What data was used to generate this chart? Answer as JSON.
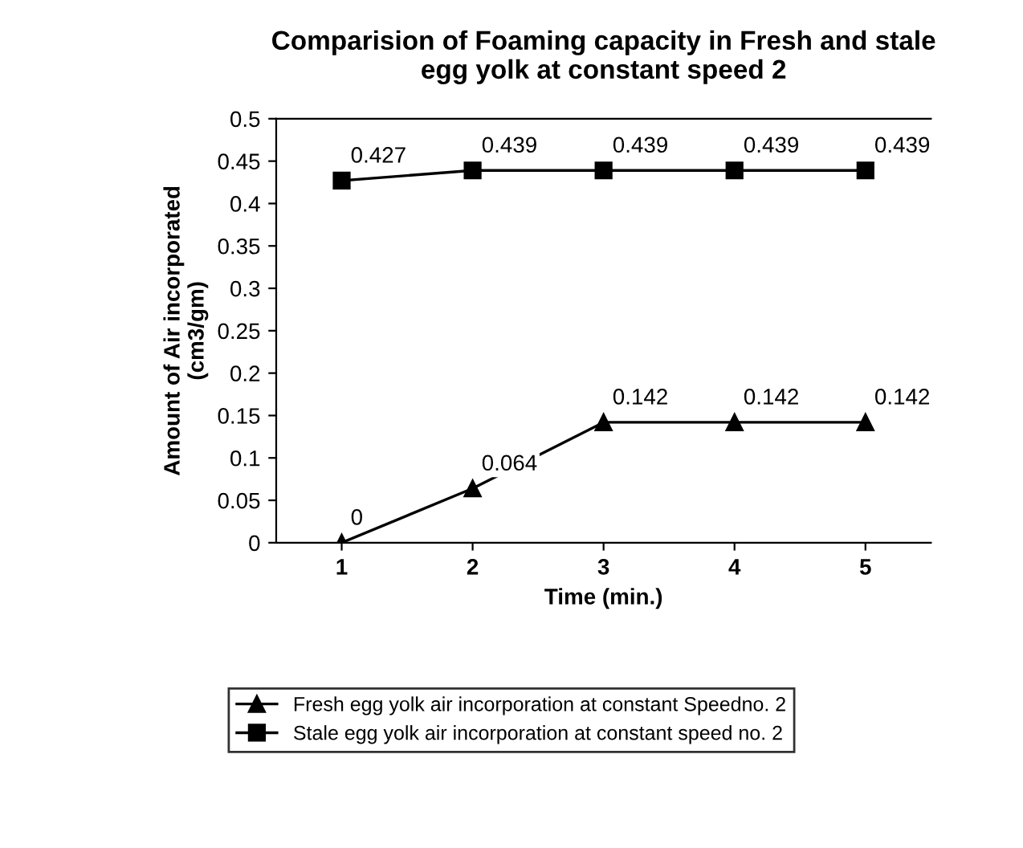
{
  "chart_data": {
    "type": "line",
    "title": "Comparision of Foaming capacity in Fresh and stale\negg yolk at constant speed 2",
    "xlabel": "Time (min.)",
    "ylabel": "Amount of Air incorporated\n(cm3/gm)",
    "categories": [
      "1",
      "2",
      "3",
      "4",
      "5"
    ],
    "series": [
      {
        "name": "Fresh egg yolk air incorporation at constant Speedno. 2",
        "color": "#000000",
        "marker": "triangle",
        "values": [
          0,
          0.064,
          0.142,
          0.142,
          0.142
        ]
      },
      {
        "name": "Stale egg yolk air incorporation at constant speed no. 2",
        "color": "#000000",
        "marker": "square",
        "values": [
          0.427,
          0.439,
          0.439,
          0.439,
          0.439
        ]
      }
    ],
    "ylim": [
      0,
      0.5
    ],
    "yticks": [
      0,
      0.05,
      0.1,
      0.15,
      0.2,
      0.25,
      0.3,
      0.35,
      0.4,
      0.45,
      0.5
    ],
    "data_labels": true,
    "grid": false,
    "legend": "bottom",
    "line_style": "solid"
  }
}
